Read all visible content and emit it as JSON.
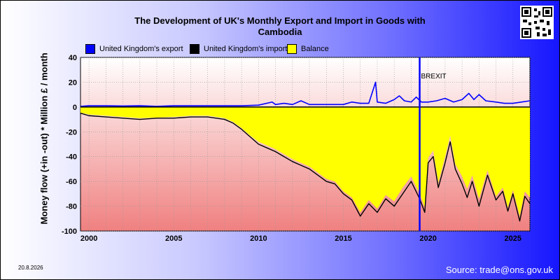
{
  "title": "The Development of UK's Monthly Export and Import in Goods with\nCambodia",
  "date_label": "20.8.2026",
  "source": "Source: trade@ons.gov.uk",
  "qr_code": "qr-code-icon",
  "colors": {
    "export": "#0000ff",
    "import": "#000000",
    "balance": "#ffff00",
    "brexit": "#0000ff",
    "plot_top": "#ffffff",
    "plot_bottom": "#f08080"
  },
  "chart_data": {
    "type": "line",
    "title": "The Development of UK's Monthly Export and Import in Goods with Cambodia",
    "xlabel": "",
    "ylabel": "Money flow (+in -out) * Million £ / month",
    "xlim": [
      1999.5,
      2026.0
    ],
    "ylim": [
      -100,
      40
    ],
    "x_ticks": [
      "2000",
      "2005",
      "2010",
      "2015",
      "2020",
      "2025"
    ],
    "y_ticks": [
      "40",
      "20",
      "0",
      "-20",
      "-40",
      "-60",
      "-80",
      "-100"
    ],
    "grid": true,
    "legend_position": "top",
    "annotations": [
      {
        "label": "BREXIT",
        "x": 2019.5
      }
    ],
    "series": [
      {
        "name": "United Kingdom's export",
        "x": [
          1999.5,
          2000,
          2001,
          2002,
          2003,
          2004,
          2005,
          2006,
          2007,
          2008,
          2009,
          2010,
          2010.8,
          2011,
          2011.5,
          2012,
          2012.5,
          2013,
          2014,
          2015,
          2015.5,
          2016,
          2016.5,
          2016.9,
          2017,
          2017.5,
          2018,
          2018.3,
          2018.6,
          2019,
          2019.3,
          2019.6,
          2020,
          2020.5,
          2021,
          2021.5,
          2022,
          2022.4,
          2022.7,
          2023,
          2023.4,
          2024,
          2024.5,
          2025,
          2025.5,
          2026
        ],
        "y": [
          0.5,
          1,
          1,
          0.8,
          1,
          0.5,
          1,
          1,
          1,
          1,
          1,
          1.5,
          4,
          2,
          3,
          2,
          5,
          2,
          2,
          2,
          4,
          3,
          3,
          20,
          4,
          3,
          6,
          9,
          5,
          4,
          8,
          4,
          4,
          5,
          7,
          4,
          6,
          11,
          6,
          10,
          5,
          4,
          3,
          3,
          4,
          5
        ]
      },
      {
        "name": "United Kingdom's import",
        "x": [
          1999.5,
          2000,
          2001,
          2002,
          2003,
          2004,
          2005,
          2006,
          2007,
          2008,
          2008.5,
          2009,
          2009.5,
          2010,
          2010.5,
          2011,
          2011.5,
          2012,
          2012.5,
          2013,
          2013.5,
          2014,
          2014.5,
          2015,
          2015.5,
          2016,
          2016.5,
          2017,
          2017.5,
          2018,
          2018.5,
          2019,
          2019.5,
          2019.8,
          2020,
          2020.3,
          2020.6,
          2021,
          2021.3,
          2021.6,
          2022,
          2022.3,
          2022.6,
          2023,
          2023.5,
          2024,
          2024.4,
          2024.7,
          2025,
          2025.4,
          2025.7,
          2026
        ],
        "y": [
          -5,
          -7,
          -8,
          -9,
          -10,
          -9,
          -9,
          -8,
          -8,
          -10,
          -13,
          -18,
          -24,
          -30,
          -33,
          -36,
          -40,
          -44,
          -47,
          -50,
          -55,
          -60,
          -62,
          -70,
          -75,
          -88,
          -78,
          -85,
          -74,
          -80,
          -70,
          -60,
          -74,
          -85,
          -45,
          -40,
          -65,
          -45,
          -28,
          -50,
          -62,
          -73,
          -60,
          -80,
          -55,
          -75,
          -68,
          -84,
          -70,
          -92,
          -72,
          -78
        ]
      },
      {
        "name": "Balance",
        "x": [
          1999.5,
          2000,
          2001,
          2002,
          2003,
          2004,
          2005,
          2006,
          2007,
          2008,
          2008.5,
          2009,
          2009.5,
          2010,
          2010.5,
          2011,
          2011.5,
          2012,
          2012.5,
          2013,
          2013.5,
          2014,
          2014.5,
          2015,
          2015.5,
          2016,
          2016.5,
          2017,
          2017.5,
          2018,
          2018.5,
          2019,
          2019.5,
          2019.8,
          2020,
          2020.3,
          2020.6,
          2021,
          2021.3,
          2021.6,
          2022,
          2022.3,
          2022.6,
          2023,
          2023.5,
          2024,
          2024.4,
          2024.7,
          2025,
          2025.4,
          2025.7,
          2026
        ],
        "y": [
          -4.5,
          -6,
          -7,
          -8,
          -9,
          -8.5,
          -8,
          -7,
          -7,
          -9,
          -12,
          -17,
          -23,
          -28,
          -31,
          -34,
          -38,
          -42,
          -45,
          -48,
          -53,
          -58,
          -60,
          -68,
          -73,
          -85,
          -75,
          -82,
          -71,
          -76,
          -65,
          -56,
          -70,
          -81,
          -41,
          -35,
          -61,
          -40,
          -23,
          -46,
          -56,
          -66,
          -55,
          -74,
          -51,
          -72,
          -65,
          -81,
          -67,
          -88,
          -68,
          -73
        ]
      }
    ]
  }
}
